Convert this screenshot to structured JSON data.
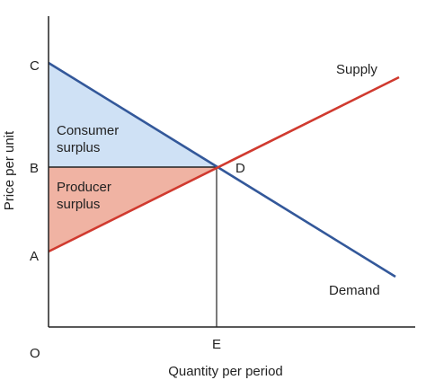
{
  "axes": {
    "x_title": "Quantity per period",
    "y_title": "Price per unit"
  },
  "points": {
    "origin": "O",
    "c": "C",
    "b": "B",
    "a": "A",
    "d": "D",
    "e": "E"
  },
  "curves": {
    "supply": "Supply",
    "demand": "Demand"
  },
  "regions": {
    "consumer_line1": "Consumer",
    "consumer_line2": "surplus",
    "producer_line1": "Producer",
    "producer_line2": "surplus"
  },
  "colors": {
    "supply": "#d03a2f",
    "demand": "#33589a",
    "consumer_fill": "#cfe1f5",
    "producer_fill": "#f0b3a3",
    "axis": "#222222"
  }
}
